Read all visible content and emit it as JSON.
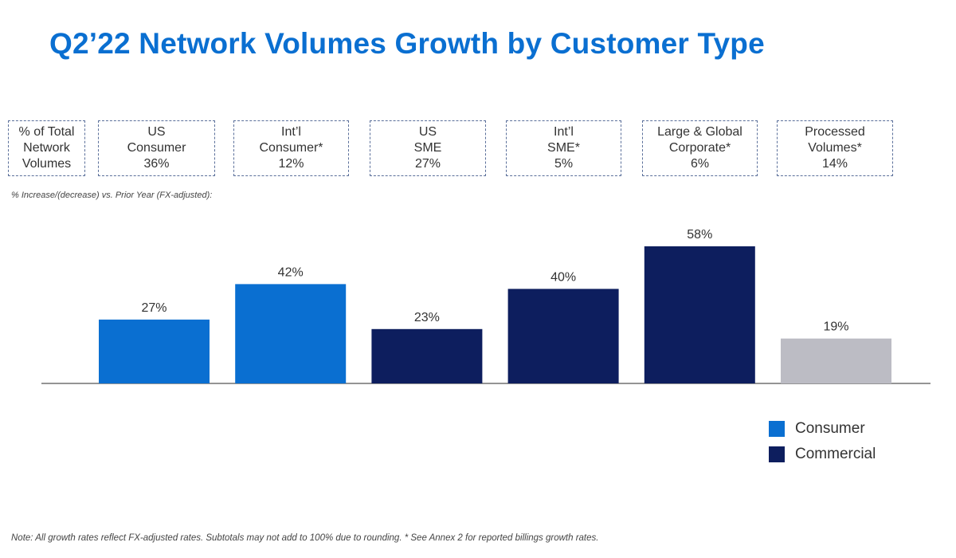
{
  "title": "Q2’22 Network Volumes Growth by Customer Type",
  "header_boxes": [
    {
      "lines": [
        "% of Total",
        "Network",
        "Volumes"
      ]
    },
    {
      "lines": [
        "US",
        "Consumer",
        "36%"
      ]
    },
    {
      "lines": [
        "Int’l",
        "Consumer*",
        "12%"
      ]
    },
    {
      "lines": [
        "US",
        "SME",
        "27%"
      ]
    },
    {
      "lines": [
        "Int’l",
        "SME*",
        "5%"
      ]
    },
    {
      "lines": [
        "Large & Global",
        "Corporate*",
        "6%"
      ]
    },
    {
      "lines": [
        "Processed",
        "Volumes*",
        "14%"
      ]
    }
  ],
  "subtitle": "% Increase/(decrease)  vs. Prior Year (FX-adjusted):",
  "chart_data": {
    "type": "bar",
    "categories": [
      "US Consumer",
      "Int’l Consumer*",
      "US SME",
      "Int’l SME*",
      "Large & Global Corporate*",
      "Processed Volumes*"
    ],
    "values": [
      27,
      42,
      23,
      40,
      58,
      19
    ],
    "labels": [
      "27%",
      "42%",
      "23%",
      "40%",
      "58%",
      "19%"
    ],
    "groups": [
      "Consumer",
      "Consumer",
      "Commercial",
      "Commercial",
      "Commercial",
      "Processed"
    ],
    "ylim": [
      0,
      58
    ],
    "title": "% Increase/(decrease)  vs. Prior Year (FX-adjusted):",
    "xlabel": "",
    "ylabel": ""
  },
  "colors": {
    "Consumer": "#0a6fd1",
    "Commercial": "#0d1e5e",
    "Processed": "#bcbcc4"
  },
  "legend": [
    {
      "label": "Consumer",
      "color": "#0a6fd1"
    },
    {
      "label": "Commercial",
      "color": "#0d1e5e"
    }
  ],
  "note": "Note: All growth rates reflect FX-adjusted rates. Subtotals may not add to 100% due to rounding. * See Annex 2 for reported billings growth rates."
}
